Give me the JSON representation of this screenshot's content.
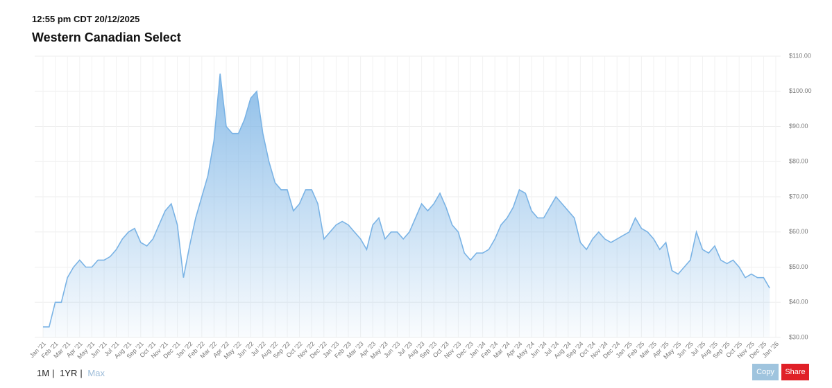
{
  "header": {
    "timestamp": "12:55 pm CDT 20/12/2025",
    "title": "Western Canadian Select"
  },
  "ranges": {
    "items": [
      "1M",
      "1YR",
      "Max"
    ],
    "separator": "|"
  },
  "actions": {
    "copy": "Copy",
    "share": "Share"
  },
  "chart_data": {
    "type": "area",
    "color": "#7ab3e5",
    "grid": true,
    "ylim": [
      30,
      110
    ],
    "yticks": [
      {
        "value": 30,
        "label": "$30.00"
      },
      {
        "value": 40,
        "label": "$40.00"
      },
      {
        "value": 50,
        "label": "$50.00"
      },
      {
        "value": 60,
        "label": "$60.00"
      },
      {
        "value": 70,
        "label": "$70.00"
      },
      {
        "value": 80,
        "label": "$80.00"
      },
      {
        "value": 90,
        "label": "$90.00"
      },
      {
        "value": 100,
        "label": "$100.00"
      },
      {
        "value": 110,
        "label": "$110.00"
      }
    ],
    "categories": [
      "Jan '21",
      null,
      "Feb '21",
      null,
      "Mar '21",
      null,
      "Apr '21",
      null,
      "May '21",
      null,
      "Jun '21",
      null,
      "Jul '21",
      null,
      "Aug '21",
      null,
      "Sep '21",
      null,
      "Oct '21",
      null,
      "Nov '21",
      null,
      "Dec '21",
      null,
      "Jan '22",
      null,
      "Feb '22",
      null,
      "Mar '22",
      null,
      "Apr '22",
      null,
      "May '22",
      null,
      "Jun '22",
      null,
      "Jul '22",
      null,
      "Aug '22",
      null,
      "Sep '22",
      null,
      "Oct '22",
      null,
      "Nov '22",
      null,
      "Dec '22",
      null,
      "Jan '23",
      null,
      "Feb '23",
      null,
      "Mar '23",
      null,
      "Apr '23",
      null,
      "May '23",
      null,
      "Jun '23",
      null,
      "Jul '23",
      null,
      "Aug '23",
      null,
      "Sep '23",
      null,
      "Oct '23",
      null,
      "Nov '23",
      null,
      "Dec '23",
      null,
      "Jan '24",
      null,
      "Feb '24",
      null,
      "Mar '24",
      null,
      "Apr '24",
      null,
      "May '24",
      null,
      "Jun '24",
      null,
      "Jul '24",
      null,
      "Aug '24",
      null,
      "Sep '24",
      null,
      "Oct '24",
      null,
      "Nov '24",
      null,
      "Dec '24",
      null,
      "Jan '25",
      null,
      "Feb '25",
      null,
      "Mar '25",
      null,
      "Apr '25",
      null,
      "May '25",
      null,
      "Jun '25",
      null,
      "Jul '25",
      null,
      "Aug '25",
      null,
      "Sep '25",
      null,
      "Oct '25",
      null,
      "Nov '25",
      null,
      "Dec '25",
      null,
      "Jan '26"
    ],
    "values": [
      33,
      33,
      40,
      40,
      47,
      50,
      52,
      50,
      50,
      52,
      52,
      53,
      55,
      58,
      60,
      61,
      57,
      56,
      58,
      62,
      66,
      68,
      62,
      47,
      56,
      64,
      70,
      76,
      86,
      105,
      90,
      88,
      88,
      92,
      98,
      100,
      88,
      80,
      74,
      72,
      72,
      66,
      68,
      72,
      72,
      68,
      58,
      60,
      62,
      63,
      62,
      60,
      58,
      55,
      62,
      64,
      58,
      60,
      60,
      58,
      60,
      64,
      68,
      66,
      68,
      71,
      67,
      62,
      60,
      54,
      52,
      54,
      54,
      55,
      58,
      62,
      64,
      67,
      72,
      71,
      66,
      64,
      64,
      67,
      70,
      68,
      66,
      64,
      57,
      55,
      58,
      60,
      58,
      57,
      58,
      59,
      60,
      64,
      61,
      60,
      58,
      55,
      57,
      49,
      48,
      50,
      52,
      60,
      55,
      54,
      56,
      52,
      51,
      52,
      50,
      47,
      48,
      47,
      47,
      44,
      null
    ]
  }
}
